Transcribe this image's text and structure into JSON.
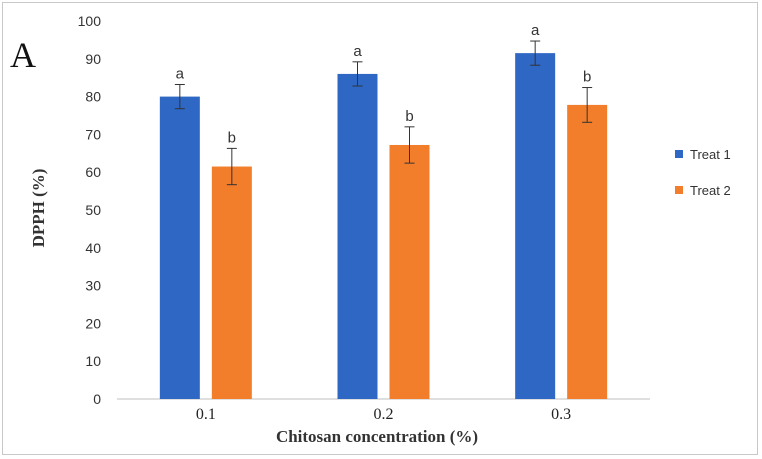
{
  "chart_data": {
    "type": "bar",
    "panel_label": "A",
    "categories": [
      "0.1",
      "0.2",
      "0.3"
    ],
    "series": [
      {
        "name": "Treat 1",
        "color": "#2e67c4",
        "values": [
          80,
          86,
          91.5
        ],
        "errors": [
          3.2,
          3.2,
          3.2
        ],
        "labels": [
          "a",
          "a",
          "a"
        ]
      },
      {
        "name": "Treat 2",
        "color": "#f27e2b",
        "values": [
          61.5,
          67.2,
          77.8
        ],
        "errors": [
          4.8,
          4.8,
          4.6
        ],
        "labels": [
          "b",
          "b",
          "b"
        ]
      }
    ],
    "xlabel": "Chitosan concentration  (%)",
    "ylabel": "DPPH (%)",
    "ylim": [
      0,
      100
    ],
    "yticks": [
      0,
      10,
      20,
      30,
      40,
      50,
      60,
      70,
      80,
      90,
      100
    ],
    "legend_position": "right",
    "grid": false
  }
}
